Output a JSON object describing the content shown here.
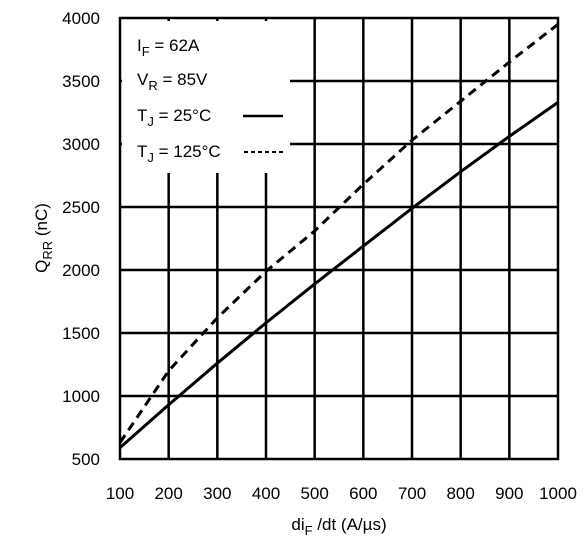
{
  "chart_data": {
    "type": "line",
    "title": "",
    "xlabel": {
      "main": "di",
      "sub": "F",
      "rest": " /dt (A/µs)"
    },
    "ylabel": {
      "main": "Q",
      "sub": "RR",
      "rest": " (nC)"
    },
    "xlim": [
      100,
      1000
    ],
    "ylim": [
      500,
      4000
    ],
    "xticks": [
      100,
      200,
      300,
      400,
      500,
      600,
      700,
      800,
      900,
      1000
    ],
    "yticks": [
      500,
      1000,
      1500,
      2000,
      2500,
      3000,
      3500,
      4000
    ],
    "grid": true,
    "legend_position": "top-left",
    "conditions": [
      {
        "main": "I",
        "sub": "F",
        "rest": " = 62A"
      },
      {
        "main": "V",
        "sub": "R",
        "rest": " = 85V"
      }
    ],
    "series": [
      {
        "name": {
          "main": "T",
          "sub": "J",
          "rest": " = 25°C"
        },
        "line_style": "solid",
        "x": [
          100,
          200,
          300,
          400,
          500,
          600,
          700,
          800,
          900,
          1000
        ],
        "y": [
          590,
          930,
          1260,
          1580,
          1890,
          2190,
          2490,
          2780,
          3060,
          3330
        ]
      },
      {
        "name": {
          "main": "T",
          "sub": "J",
          "rest": " = 125°C"
        },
        "line_style": "dashed",
        "x": [
          100,
          200,
          300,
          400,
          500,
          600,
          700,
          800,
          900,
          1000
        ],
        "y": [
          630,
          1200,
          1620,
          1990,
          2310,
          2680,
          3030,
          3340,
          3650,
          3950
        ]
      }
    ]
  }
}
